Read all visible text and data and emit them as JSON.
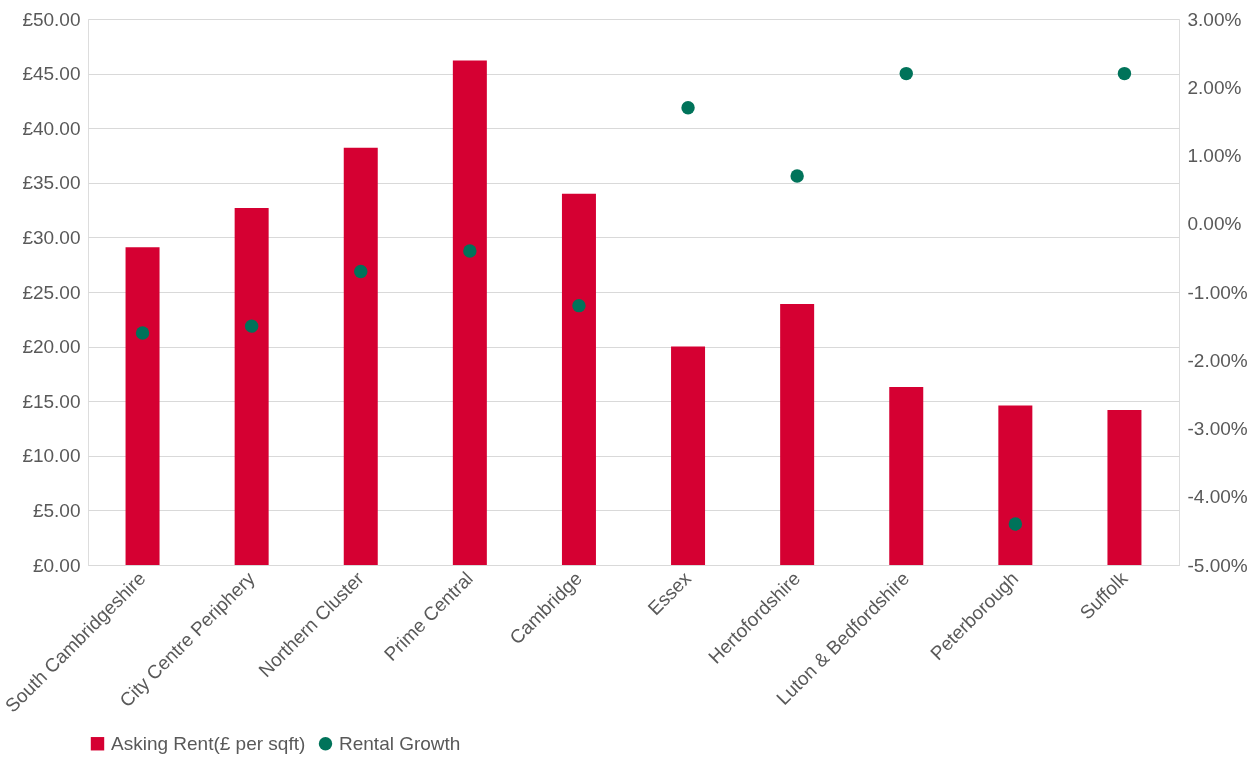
{
  "chart_data": {
    "type": "bar",
    "categories": [
      "South Cambridgeshire",
      "City Centre Periphery",
      "Northern Cluster",
      "Prime Central",
      "Cambridge",
      "Essex",
      "Hertofordshire",
      "Luton & Bedfordshire",
      "Peterborough",
      "Suffolk"
    ],
    "series": [
      {
        "name": "Asking Rent(£ per sqft)",
        "color": "#d50032",
        "values": [
          29.1,
          32.7,
          38.2,
          46.2,
          34.0,
          20.0,
          23.9,
          16.3,
          14.6,
          14.2
        ]
      },
      {
        "name": "Rental Growth",
        "type": "scatter",
        "axis": "y2",
        "color": "#00735a",
        "values": [
          -1.6,
          -1.5,
          -0.7,
          -0.4,
          -1.2,
          1.7,
          0.7,
          2.2,
          -4.4,
          2.2
        ]
      }
    ],
    "ylim": [
      0,
      50
    ],
    "yticks": [
      {
        "value": 0,
        "label": "£0.00"
      },
      {
        "value": 5,
        "label": "£5.00"
      },
      {
        "value": 10,
        "label": "£10.00"
      },
      {
        "value": 15,
        "label": "£15.00"
      },
      {
        "value": 20,
        "label": "£20.00"
      },
      {
        "value": 25,
        "label": "£25.00"
      },
      {
        "value": 30,
        "label": "£30.00"
      },
      {
        "value": 35,
        "label": "£35.00"
      },
      {
        "value": 40,
        "label": "£40.00"
      },
      {
        "value": 45,
        "label": "£45.00"
      },
      {
        "value": 50,
        "label": "£50.00"
      }
    ],
    "y2lim": [
      -5,
      3
    ],
    "y2ticks": [
      {
        "value": -5,
        "label": "-5.00%"
      },
      {
        "value": -4,
        "label": "-4.00%"
      },
      {
        "value": -3,
        "label": "-3.00%"
      },
      {
        "value": -2,
        "label": "-2.00%"
      },
      {
        "value": -1,
        "label": "-1.00%"
      },
      {
        "value": 0,
        "label": "0.00%"
      },
      {
        "value": 1,
        "label": "1.00%"
      },
      {
        "value": 2,
        "label": "2.00%"
      },
      {
        "value": 3,
        "label": "3.00%"
      }
    ],
    "grid": "y",
    "legend": "bottom",
    "marker": "circle"
  }
}
